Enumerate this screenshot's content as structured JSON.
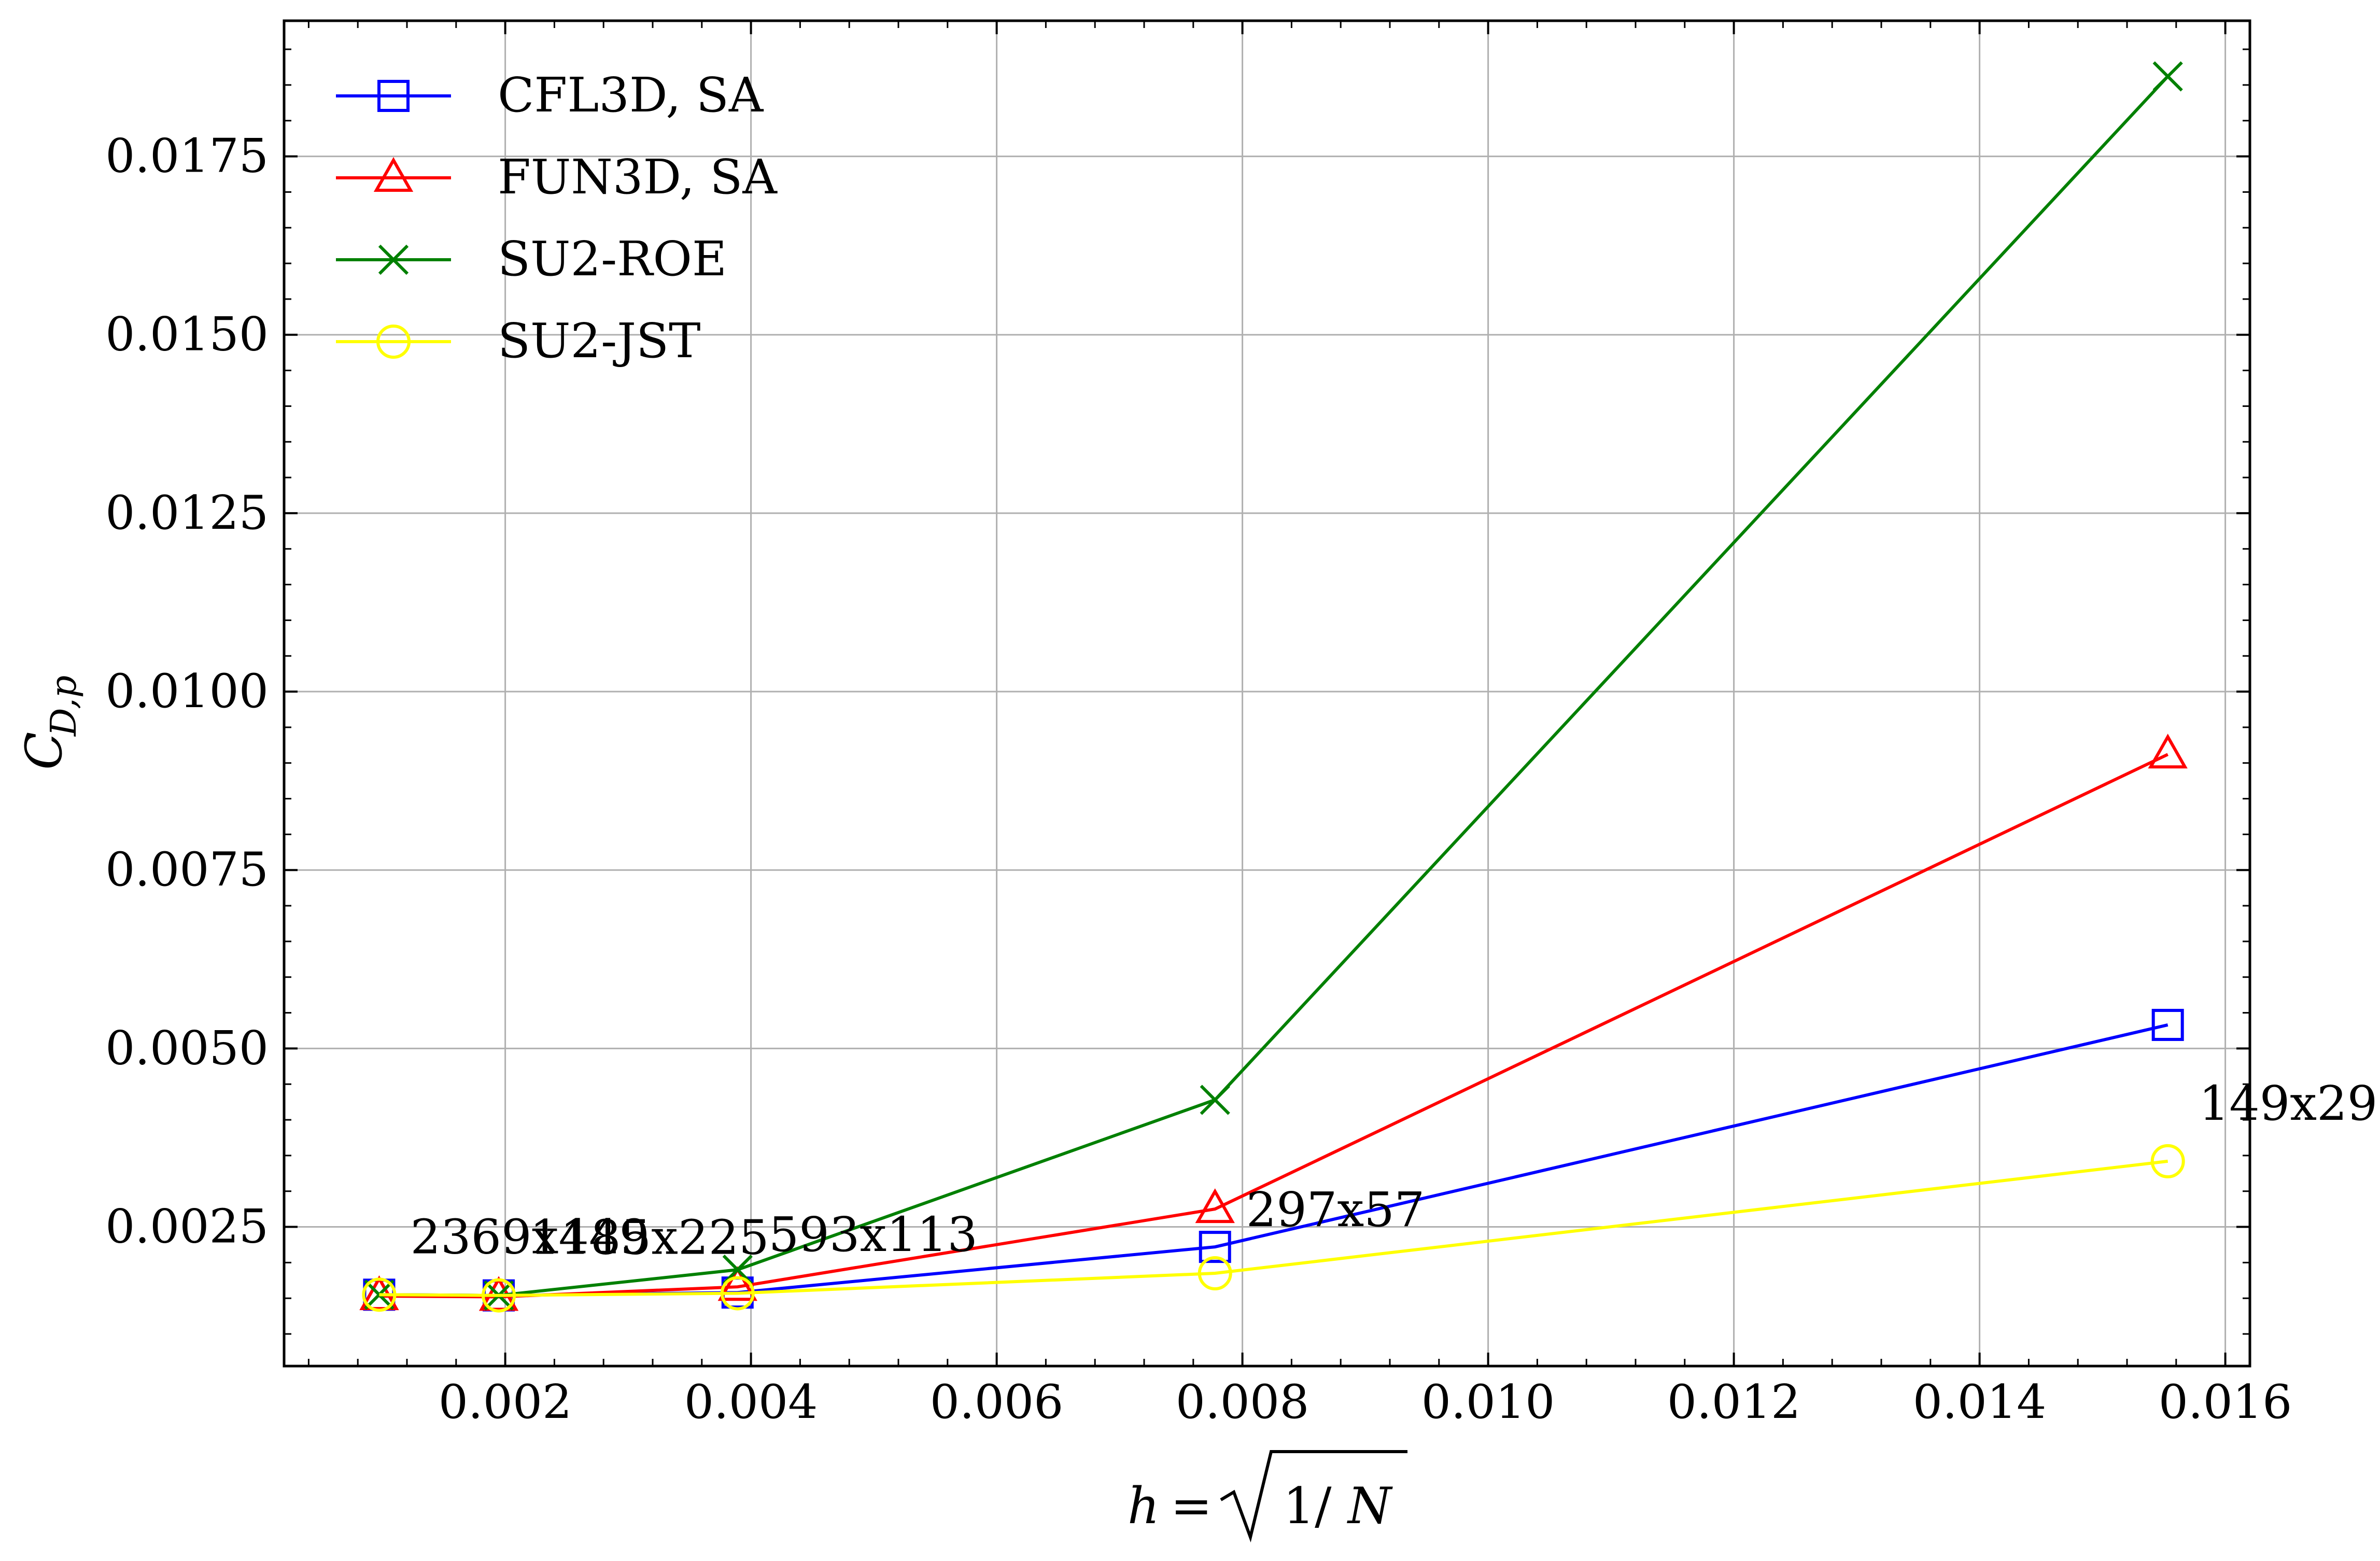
{
  "chart_data": {
    "type": "line",
    "title": "",
    "xlabel": "h = √(1/N)",
    "ylabel": "C_{D,p}",
    "xlim": [
      0.0002,
      0.0162
    ],
    "ylim": [
      0.00055,
      0.0194
    ],
    "grid": true,
    "legend_position": "top-left",
    "x_ticks": [
      "0.002",
      "0.004",
      "0.006",
      "0.008",
      "0.010",
      "0.012",
      "0.014",
      "0.016"
    ],
    "y_ticks": [
      "0.0025",
      "0.0050",
      "0.0075",
      "0.0100",
      "0.0125",
      "0.0150",
      "0.0175"
    ],
    "series": [
      {
        "name": "CFL3D, SA",
        "color": "#0000ff",
        "marker": "square",
        "x": [
          0.000974,
          0.001947,
          0.003891,
          0.007777,
          0.015532
        ],
        "y": [
          0.00155,
          0.00154,
          0.00158,
          0.00222,
          0.00533
        ]
      },
      {
        "name": "FUN3D, SA",
        "color": "#ff0000",
        "marker": "triangle",
        "x": [
          0.000974,
          0.001947,
          0.003891,
          0.007777,
          0.015532
        ],
        "y": [
          0.00153,
          0.00152,
          0.00166,
          0.00275,
          0.00912
        ]
      },
      {
        "name": "SU2-ROE",
        "color": "#008000",
        "marker": "x",
        "x": [
          0.000974,
          0.001947,
          0.003891,
          0.007777,
          0.015532
        ],
        "y": [
          0.00155,
          0.00154,
          0.0019,
          0.00428,
          0.01862
        ]
      },
      {
        "name": "SU2-JST",
        "color": "#ffff00",
        "marker": "circle",
        "x": [
          0.000974,
          0.001947,
          0.003891,
          0.007777,
          0.015532
        ],
        "y": [
          0.00155,
          0.00154,
          0.00157,
          0.00185,
          0.00342
        ]
      }
    ],
    "annotations": [
      {
        "text": "2369x449",
        "x": 0.000974,
        "y": 0.00155
      },
      {
        "text": "1185x225",
        "x": 0.001947,
        "y": 0.00154
      },
      {
        "text": "593x113",
        "x": 0.003891,
        "y": 0.00158
      },
      {
        "text": "297x57",
        "x": 0.007777,
        "y": 0.00222
      },
      {
        "text": "149x29",
        "x": 0.015532,
        "y": 0.00342
      }
    ]
  }
}
